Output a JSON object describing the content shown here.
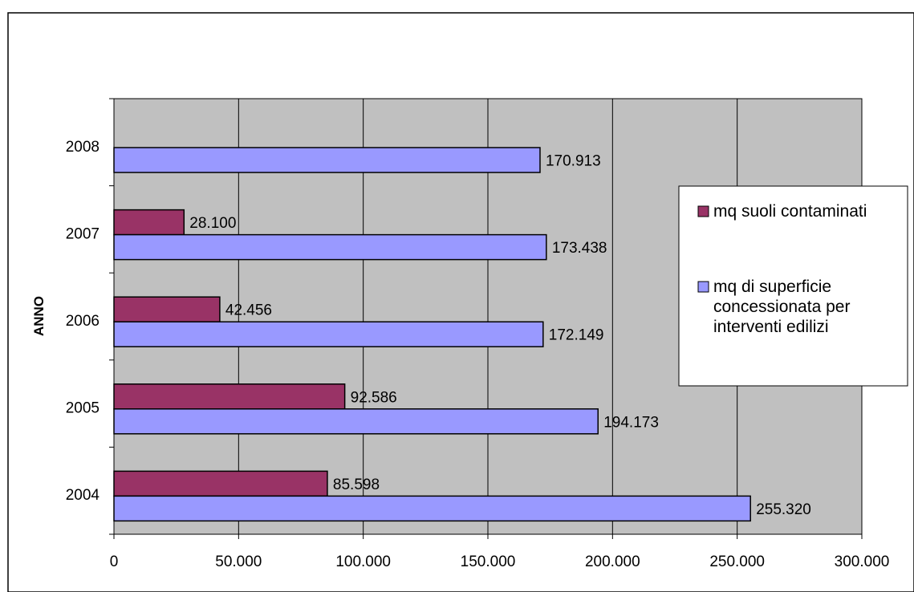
{
  "chart_data": {
    "type": "bar",
    "orientation": "horizontal",
    "title": "",
    "xlabel": "",
    "ylabel": "ANNO",
    "categories": [
      "2004",
      "2005",
      "2006",
      "2007",
      "2008"
    ],
    "series": [
      {
        "name": "mq suoli contaminati",
        "color": "#993366",
        "values": [
          85598,
          92586,
          42456,
          28100,
          null
        ],
        "labels": [
          "85.598",
          "92.586",
          "42.456",
          "28.100",
          ""
        ]
      },
      {
        "name": "mq di superficie concessionata per interventi edilizi",
        "color": "#9999ff",
        "values": [
          255320,
          194173,
          172149,
          173438,
          170913
        ],
        "labels": [
          "255.320",
          "194.173",
          "172.149",
          "173.438",
          "170.913"
        ]
      }
    ],
    "xlim": [
      0,
      300000
    ],
    "xticks": [
      0,
      50000,
      100000,
      150000,
      200000,
      250000,
      300000
    ],
    "xtick_labels": [
      "0",
      "50.000",
      "100.000",
      "150.000",
      "200.000",
      "250.000",
      "300.000"
    ],
    "grid": true,
    "plot_background": "#c0c0c0",
    "legend": {
      "position": "right",
      "entries": [
        {
          "lines": [
            "mq suoli contaminati"
          ],
          "color": "#993366"
        },
        {
          "lines": [
            "mq di superficie",
            "concessionata per",
            "interventi edilizi"
          ],
          "color": "#9999ff"
        }
      ]
    }
  }
}
